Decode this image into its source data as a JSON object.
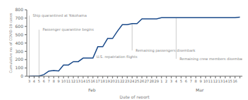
{
  "chart_data": {
    "type": "line",
    "xlabel": "Date of report",
    "ylabel": "Cumulative no. of COVID-19 cases",
    "categories": [
      "3",
      "4",
      "5",
      "6",
      "7",
      "8",
      "9",
      "10",
      "11",
      "12",
      "13",
      "14",
      "15",
      "16",
      "17",
      "18",
      "19",
      "20",
      "21",
      "22",
      "23",
      "24",
      "25",
      "26",
      "27",
      "28",
      "29",
      "1",
      "2",
      "3",
      "4",
      "5",
      "6",
      "7",
      "8",
      "9",
      "10",
      "11",
      "12",
      "13",
      "14",
      "15",
      "16",
      null
    ],
    "values": [
      0,
      3,
      3,
      20,
      61,
      70,
      64,
      135,
      135,
      175,
      175,
      218,
      218,
      218,
      355,
      355,
      454,
      454,
      542,
      621,
      621,
      634,
      634,
      691,
      691,
      691,
      691,
      705,
      705,
      705,
      705,
      705,
      705,
      705,
      705,
      705,
      705,
      705,
      705,
      705,
      705,
      705,
      705,
      712
    ],
    "color": "#1a4a8a",
    "ylim": [
      0,
      800
    ],
    "yticks": [
      0,
      100,
      200,
      300,
      400,
      500,
      600,
      700,
      800
    ],
    "grid": false,
    "x_groups": [
      {
        "label": "Feb",
        "count": 27
      },
      {
        "label": "Mar",
        "count": 16
      }
    ],
    "annotations": [
      {
        "label": "Ship quarantined at Yokohama",
        "x": 0,
        "y": 730
      },
      {
        "label": "Passenger quarantine begins",
        "x": 2,
        "y": 560
      },
      {
        "label": "U.S. repatriation flights",
        "x": 13,
        "y": 230
      },
      {
        "label": "Remaining passengers disembark",
        "x": 21,
        "y": 310
      },
      {
        "label": "Remaining crew members disembark",
        "x": 30,
        "y": 210
      }
    ]
  }
}
